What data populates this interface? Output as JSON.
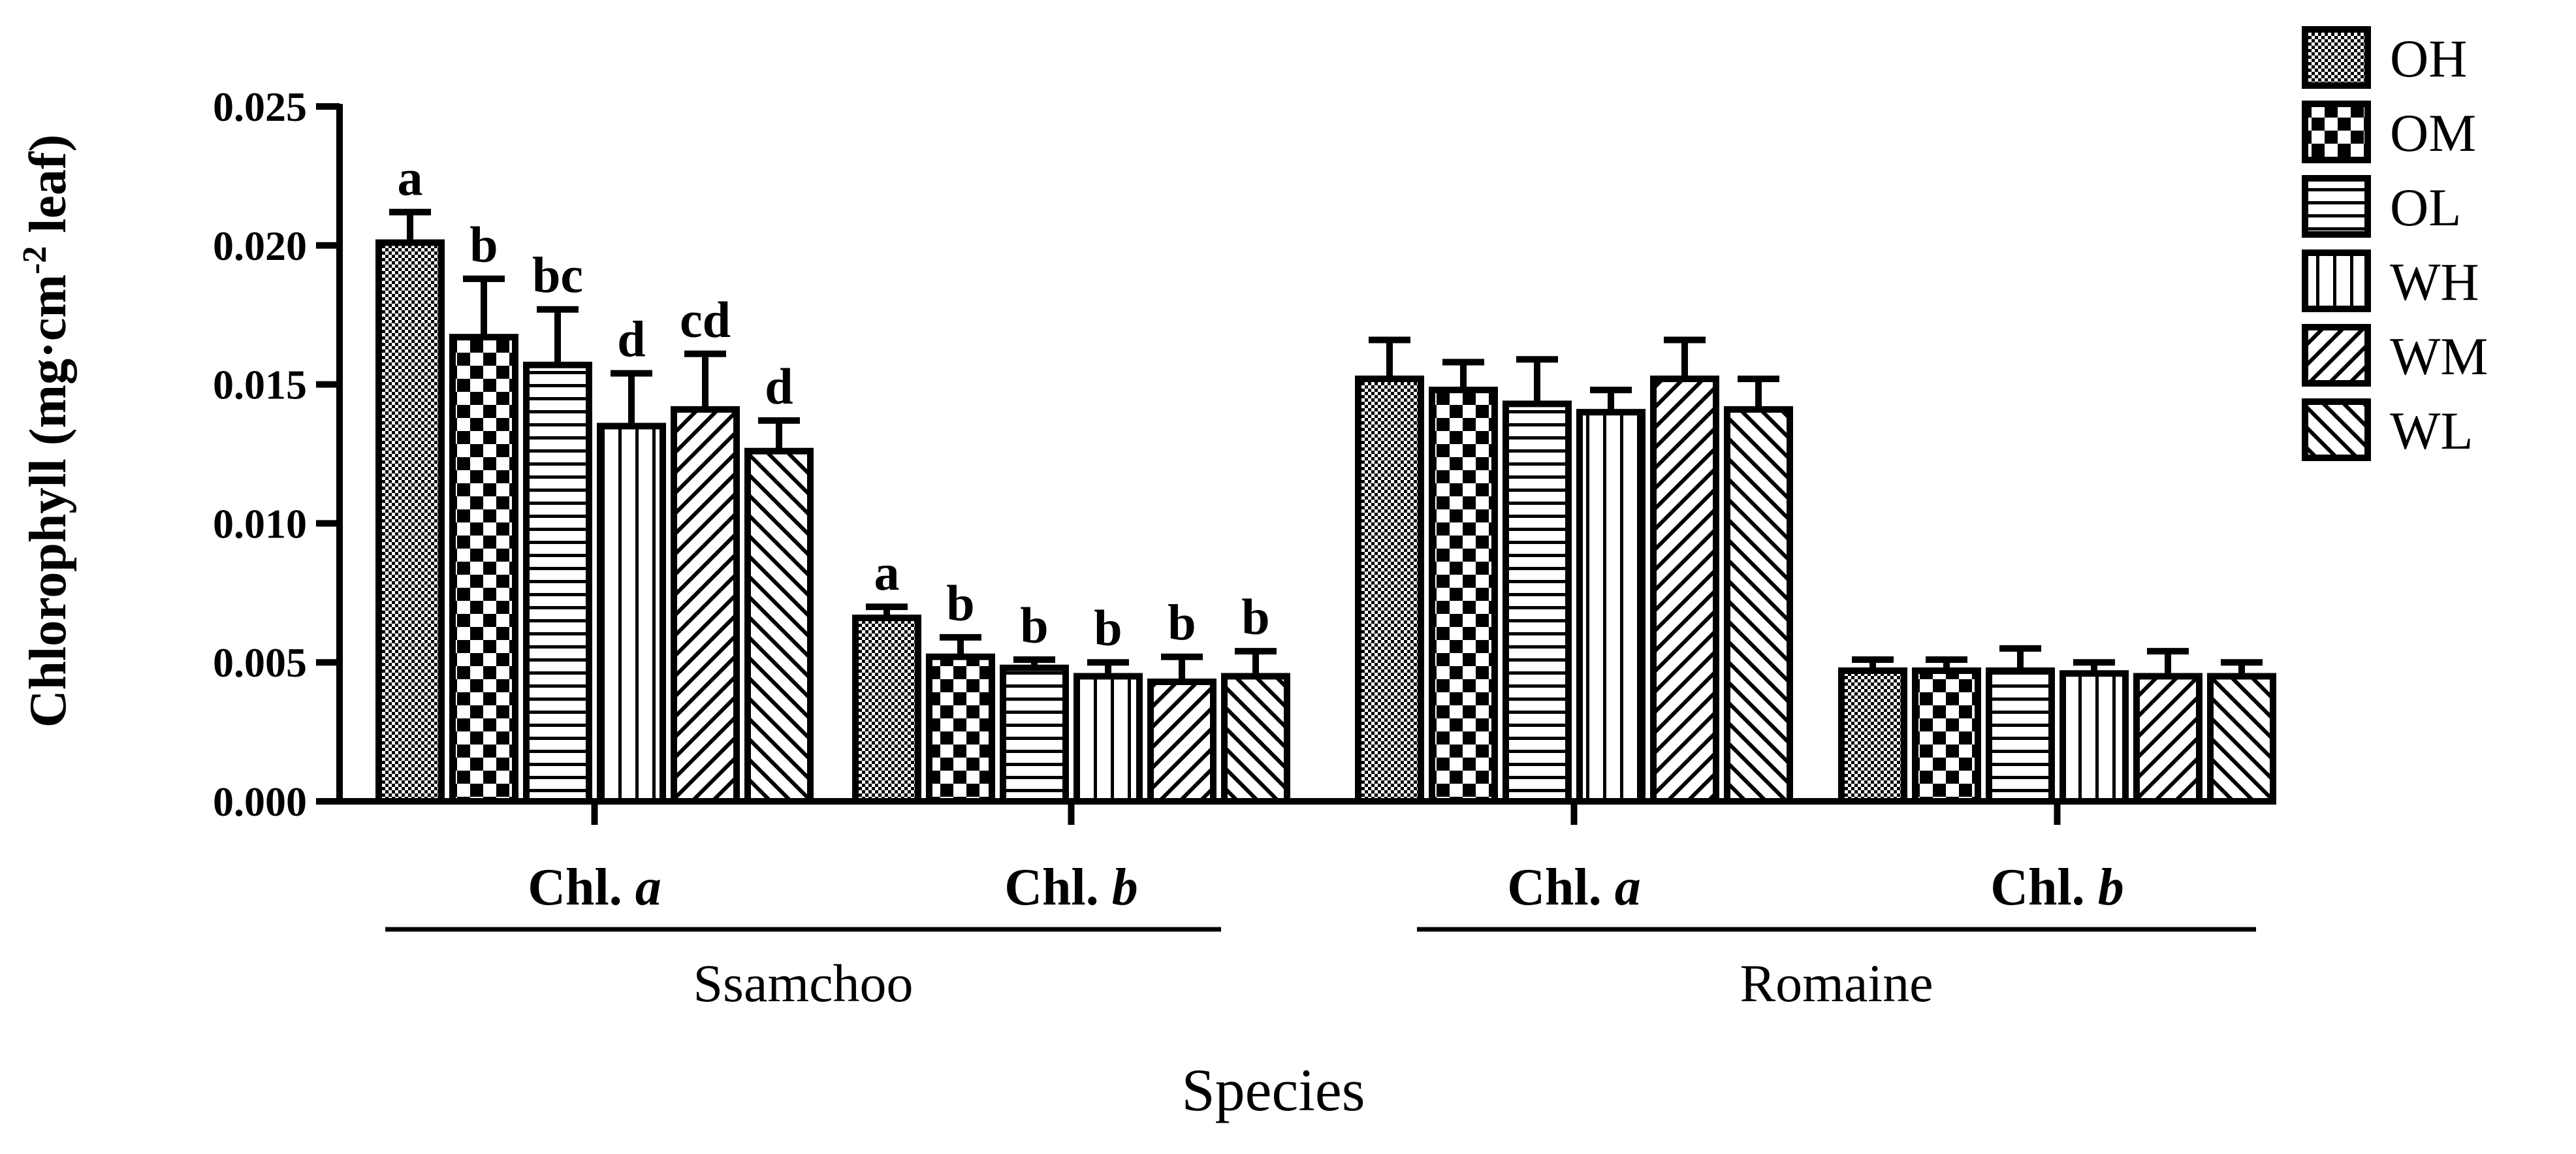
{
  "chart_data": {
    "type": "bar",
    "title": "",
    "xlabel": "Species",
    "ylabel": "Chlorophyll (mg·cm⁻² leaf)",
    "ylabel_parts": {
      "main": "Chlorophyll (mg·cm",
      "sup": "-2",
      "tail": " leaf)"
    },
    "ylim": [
      0,
      0.025
    ],
    "yticks": [
      "0.000",
      "0.005",
      "0.010",
      "0.015",
      "0.020",
      "0.025"
    ],
    "ytick_values": [
      0,
      0.005,
      0.01,
      0.015,
      0.02,
      0.025
    ],
    "legend_position": "top-right",
    "series_names": [
      "OH",
      "OM",
      "OL",
      "WH",
      "WM",
      "WL"
    ],
    "species": [
      {
        "name": "Ssamchoo",
        "groups": [
          0,
          1
        ]
      },
      {
        "name": "Romaine",
        "groups": [
          2,
          3
        ]
      }
    ],
    "groups": [
      {
        "label_prefix": "Chl.",
        "label_italic": "a",
        "species": "Ssamchoo",
        "values": [
          0.0201,
          0.0167,
          0.0157,
          0.0135,
          0.0141,
          0.0126
        ],
        "errors": [
          0.0011,
          0.0021,
          0.002,
          0.0019,
          0.002,
          0.0011
        ],
        "letters": [
          "a",
          "b",
          "bc",
          "d",
          "cd",
          "d"
        ]
      },
      {
        "label_prefix": "Chl.",
        "label_italic": "b",
        "species": "Ssamchoo",
        "values": [
          0.0066,
          0.0052,
          0.0048,
          0.0045,
          0.0043,
          0.0045
        ],
        "errors": [
          0.0004,
          0.0007,
          0.0003,
          0.0005,
          0.0009,
          0.0009
        ],
        "letters": [
          "a",
          "b",
          "b",
          "b",
          "b",
          "b"
        ]
      },
      {
        "label_prefix": "Chl.",
        "label_italic": "a",
        "species": "Romaine",
        "values": [
          0.0152,
          0.0148,
          0.0143,
          0.014,
          0.0152,
          0.0141
        ],
        "errors": [
          0.0014,
          0.001,
          0.0016,
          0.0008,
          0.0014,
          0.0011
        ],
        "letters": [
          "",
          "",
          "",
          "",
          "",
          ""
        ]
      },
      {
        "label_prefix": "Chl.",
        "label_italic": "b",
        "species": "Romaine",
        "values": [
          0.0047,
          0.0047,
          0.0047,
          0.0046,
          0.0045,
          0.0045
        ],
        "errors": [
          0.0004,
          0.0004,
          0.0008,
          0.0004,
          0.0009,
          0.0005
        ],
        "letters": [
          "",
          "",
          "",
          "",
          "",
          ""
        ]
      }
    ]
  }
}
